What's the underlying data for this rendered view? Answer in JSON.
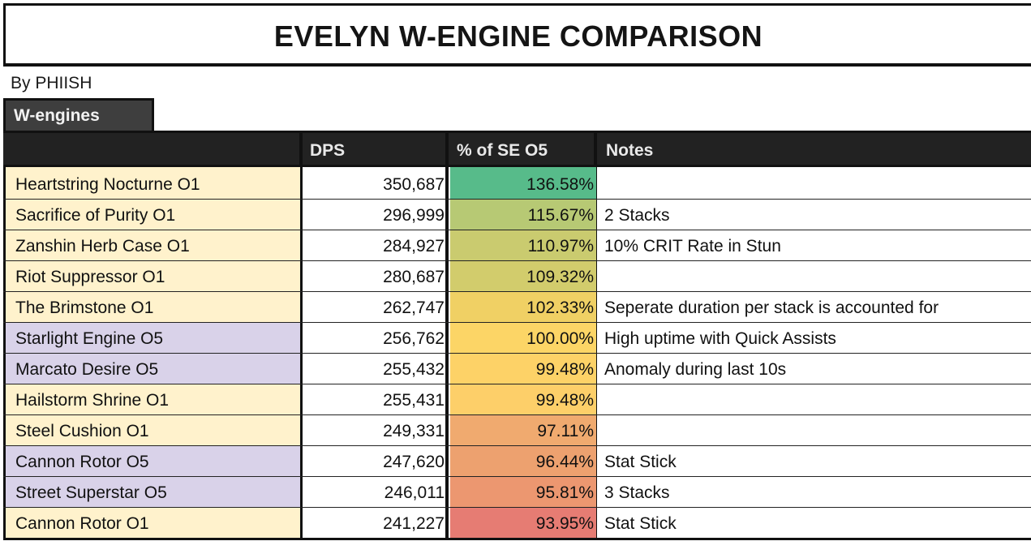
{
  "title": "EVELYN W-ENGINE COMPARISON",
  "byline": "By PHIISH",
  "section_tab": "W-engines",
  "columns": {
    "name": "",
    "dps": "DPS",
    "pct": "% of SE O5",
    "notes": "Notes"
  },
  "colors": {
    "name_bg_o1": "#fff2cc",
    "name_bg_o5": "#d9d2e9",
    "header_bg": "#222222",
    "tab_bg": "#3e3e3e"
  },
  "rows": [
    {
      "name": "Heartstring Nocturne O1",
      "dps": "350,687",
      "pct": "136.58%",
      "notes": "",
      "tier": "o1",
      "pct_color": "#57bb8a"
    },
    {
      "name": "Sacrifice of Purity O1",
      "dps": "296,999",
      "pct": "115.67%",
      "notes": "2 Stacks",
      "tier": "o1",
      "pct_color": "#b7c974"
    },
    {
      "name": "Zanshin Herb Case O1",
      "dps": "284,927",
      "pct": "110.97%",
      "notes": "10% CRIT Rate in Stun",
      "tier": "o1",
      "pct_color": "#cacb6f"
    },
    {
      "name": "Riot Suppressor O1",
      "dps": "280,687",
      "pct": "109.32%",
      "notes": "",
      "tier": "o1",
      "pct_color": "#d2cc6c"
    },
    {
      "name": "The Brimstone O1",
      "dps": "262,747",
      "pct": "102.33%",
      "notes": "Seperate duration per stack is accounted for",
      "tier": "o1",
      "pct_color": "#f0d064"
    },
    {
      "name": "Starlight Engine O5",
      "dps": "256,762",
      "pct": "100.00%",
      "notes": "High uptime with Quick Assists",
      "tier": "o5",
      "pct_color": "#fcd566"
    },
    {
      "name": "Marcato Desire O5",
      "dps": "255,432",
      "pct": "99.48%",
      "notes": "Anomaly during last 10s",
      "tier": "o5",
      "pct_color": "#fdd267"
    },
    {
      "name": "Hailstorm Shrine O1",
      "dps": "255,431",
      "pct": "99.48%",
      "notes": "",
      "tier": "o1",
      "pct_color": "#fdcf69"
    },
    {
      "name": "Steel Cushion O1",
      "dps": "249,331",
      "pct": "97.11%",
      "notes": "",
      "tier": "o1",
      "pct_color": "#f0aa6f"
    },
    {
      "name": "Cannon Rotor O5",
      "dps": "247,620",
      "pct": "96.44%",
      "notes": "Stat Stick",
      "tier": "o5",
      "pct_color": "#eda16f"
    },
    {
      "name": "Street Superstar O5",
      "dps": "246,011",
      "pct": "95.81%",
      "notes": "3 Stacks",
      "tier": "o5",
      "pct_color": "#ec9770"
    },
    {
      "name": "Cannon Rotor O1",
      "dps": "241,227",
      "pct": "93.95%",
      "notes": "Stat Stick",
      "tier": "o1",
      "pct_color": "#e67c73"
    }
  ]
}
